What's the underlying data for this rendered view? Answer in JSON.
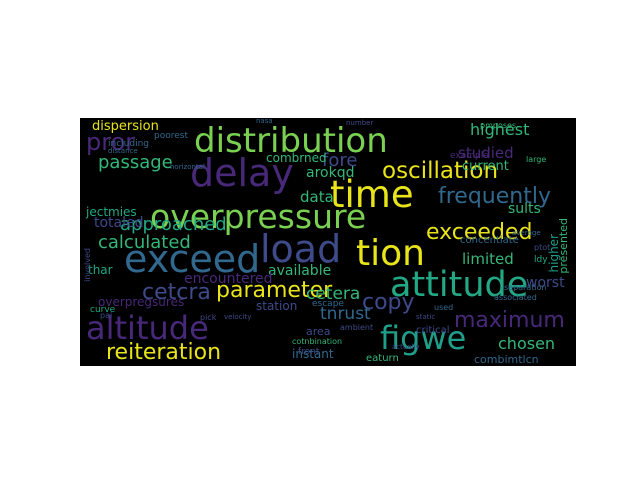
{
  "wordcloud": {
    "colors": {
      "background": "#000000",
      "yellow": "#e8e419",
      "light_green": "#7ad151",
      "green": "#35b779",
      "teal": "#22a884",
      "cyan": "#1f9e89",
      "blue": "#31688e",
      "slate": "#3e4a89",
      "purple": "#482878",
      "dark_purple": "#440154",
      "lime": "#a0da39"
    },
    "words": [
      {
        "text": "distribution",
        "color": "light_green"
      },
      {
        "text": "overpressure",
        "color": "light_green"
      },
      {
        "text": "delay",
        "color": "purple"
      },
      {
        "text": "time",
        "color": "yellow"
      },
      {
        "text": "load",
        "color": "slate"
      },
      {
        "text": "exceed",
        "color": "blue"
      },
      {
        "text": "tion",
        "color": "yellow"
      },
      {
        "text": "attitude",
        "color": "teal"
      },
      {
        "text": "altitude",
        "color": "purple"
      },
      {
        "text": "figwe",
        "color": "cyan"
      },
      {
        "text": "parameter",
        "color": "yellow"
      },
      {
        "text": "oscillation",
        "color": "yellow"
      },
      {
        "text": "reiteration",
        "color": "yellow"
      },
      {
        "text": "exceeded",
        "color": "yellow"
      },
      {
        "text": "maximum",
        "color": "purple"
      },
      {
        "text": "frequently",
        "color": "blue"
      },
      {
        "text": "calculated",
        "color": "green"
      },
      {
        "text": "cetcra",
        "color": "slate"
      },
      {
        "text": "copy",
        "color": "slate"
      },
      {
        "text": "pror",
        "color": "purple"
      },
      {
        "text": "passage",
        "color": "green"
      },
      {
        "text": "approached",
        "color": "teal"
      },
      {
        "text": "highest",
        "color": "green"
      },
      {
        "text": "fore",
        "color": "slate"
      },
      {
        "text": "cetera",
        "color": "green"
      },
      {
        "text": "tnrust",
        "color": "blue"
      },
      {
        "text": "chosen",
        "color": "green"
      },
      {
        "text": "limited",
        "color": "green"
      },
      {
        "text": "available",
        "color": "green"
      },
      {
        "text": "totaled",
        "color": "slate"
      },
      {
        "text": "encountered",
        "color": "purple"
      },
      {
        "text": "dispersion",
        "color": "yellow"
      },
      {
        "text": "arokqd",
        "color": "green"
      },
      {
        "text": "data",
        "color": "green"
      },
      {
        "text": "studied",
        "color": "purple"
      },
      {
        "text": "sults",
        "color": "green"
      },
      {
        "text": "worst",
        "color": "slate"
      },
      {
        "text": "current",
        "color": "green"
      },
      {
        "text": "jectmies",
        "color": "teal"
      },
      {
        "text": "combrned",
        "color": "green"
      },
      {
        "text": "overpregsures",
        "color": "purple"
      },
      {
        "text": "station",
        "color": "slate"
      },
      {
        "text": "thar",
        "color": "teal"
      },
      {
        "text": "instant",
        "color": "blue"
      },
      {
        "text": "eaturn",
        "color": "green"
      },
      {
        "text": "combimtlcn",
        "color": "blue"
      },
      {
        "text": "area",
        "color": "slate"
      },
      {
        "text": "presented",
        "color": "green"
      },
      {
        "text": "higher",
        "color": "cyan"
      },
      {
        "text": "concentiate",
        "color": "blue"
      },
      {
        "text": "example",
        "color": "purple"
      },
      {
        "text": "cotnbination",
        "color": "green"
      },
      {
        "text": "critical",
        "color": "slate"
      },
      {
        "text": "front",
        "color": "slate"
      },
      {
        "text": "ambient",
        "color": "slate"
      },
      {
        "text": "separation",
        "color": "blue"
      },
      {
        "text": "including",
        "color": "blue"
      },
      {
        "text": "poorest",
        "color": "blue"
      },
      {
        "text": "pmposes",
        "color": "green"
      },
      {
        "text": "nasa",
        "color": "blue"
      },
      {
        "text": "number",
        "color": "slate"
      },
      {
        "text": "escape",
        "color": "blue"
      },
      {
        "text": "large",
        "color": "green"
      },
      {
        "text": "curve",
        "color": "teal"
      },
      {
        "text": "pick",
        "color": "slate"
      },
      {
        "text": "pai",
        "color": "slate"
      },
      {
        "text": "ptot",
        "color": "slate"
      },
      {
        "text": "used",
        "color": "blue"
      },
      {
        "text": "associated",
        "color": "blue"
      },
      {
        "text": "ldy",
        "color": "teal"
      },
      {
        "text": "average",
        "color": "blue"
      },
      {
        "text": "involved",
        "color": "slate"
      },
      {
        "text": "distance",
        "color": "blue"
      },
      {
        "text": "velocity",
        "color": "slate"
      },
      {
        "text": "horizontal",
        "color": "blue"
      },
      {
        "text": "static",
        "color": "slate"
      },
      {
        "text": "actually",
        "color": "slate"
      }
    ]
  }
}
